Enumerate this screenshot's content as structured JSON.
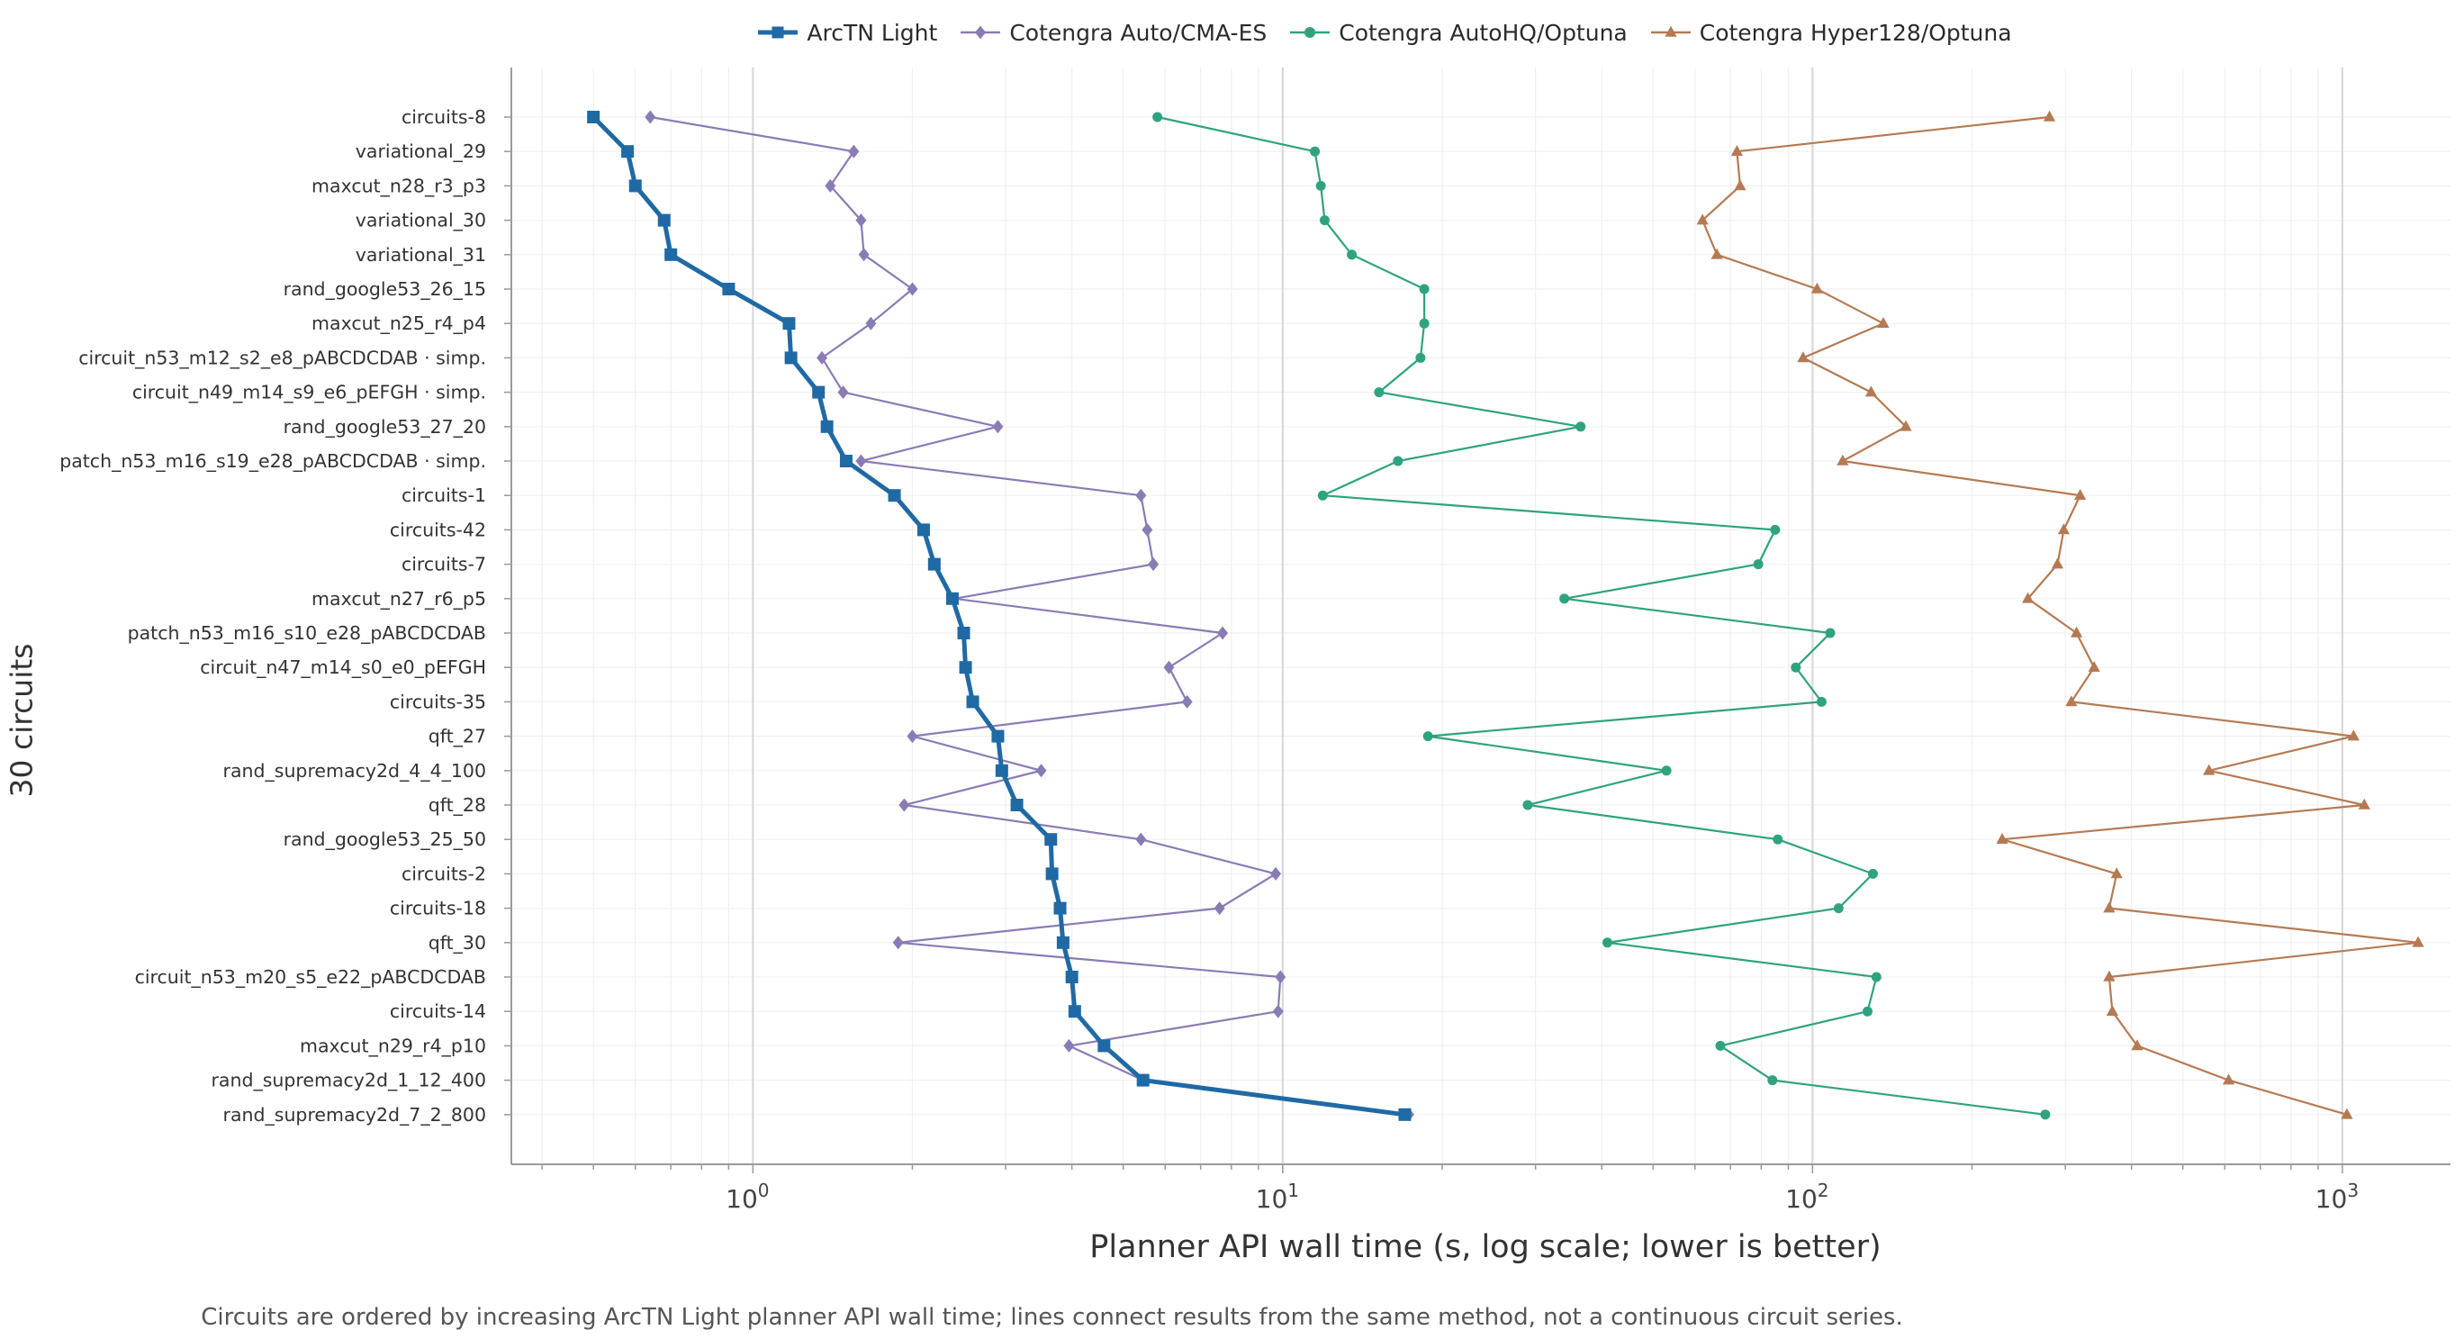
{
  "chart_data": {
    "type": "line",
    "xlabel": "Planner API wall time (s, log scale; lower is better)",
    "ylabel": "30 circuits",
    "xscale": "log",
    "xlim": [
      0.35,
      1600
    ],
    "x_tick_labels": [
      "10^0",
      "10^1",
      "10^2",
      "10^3"
    ],
    "grid": true,
    "legend_position": "top-center",
    "caption": "Circuits are ordered by increasing ArcTN Light planner API wall time; lines connect results from the same method, not a continuous circuit series.",
    "categories": [
      "circuits-8",
      "variational_29",
      "maxcut_n28_r3_p3",
      "variational_30",
      "variational_31",
      "rand_google53_26_15",
      "maxcut_n25_r4_p4",
      "circuit_n53_m12_s2_e8_pABCDCDAB · simp.",
      "circuit_n49_m14_s9_e6_pEFGH · simp.",
      "rand_google53_27_20",
      "patch_n53_m16_s19_e28_pABCDCDAB · simp.",
      "circuits-1",
      "circuits-42",
      "circuits-7",
      "maxcut_n27_r6_p5",
      "patch_n53_m16_s10_e28_pABCDCDAB",
      "circuit_n47_m14_s0_e0_pEFGH",
      "circuits-35",
      "qft_27",
      "rand_supremacy2d_4_4_100",
      "qft_28",
      "rand_google53_25_50",
      "circuits-2",
      "circuits-18",
      "qft_30",
      "circuit_n53_m20_s5_e22_pABCDCDAB",
      "circuits-14",
      "maxcut_n29_r4_p10",
      "rand_supremacy2d_1_12_400",
      "rand_supremacy2d_7_2_800"
    ],
    "series": [
      {
        "name": "ArcTN Light",
        "color": "#1f6aa5",
        "marker": "square",
        "values": [
          0.5,
          0.58,
          0.6,
          0.68,
          0.7,
          0.9,
          1.17,
          1.18,
          1.33,
          1.38,
          1.5,
          1.85,
          2.1,
          2.2,
          2.38,
          2.5,
          2.52,
          2.6,
          2.9,
          2.95,
          3.15,
          3.65,
          3.67,
          3.8,
          3.85,
          4.0,
          4.05,
          4.6,
          5.45,
          17.0
        ]
      },
      {
        "name": "Cotengra Auto/CMA-ES",
        "color": "#8b7bb5",
        "marker": "diamond",
        "values": [
          0.64,
          1.55,
          1.4,
          1.6,
          1.62,
          2.0,
          1.67,
          1.35,
          1.48,
          2.9,
          1.6,
          5.4,
          5.55,
          5.7,
          2.4,
          7.7,
          6.1,
          6.6,
          2.0,
          3.5,
          1.93,
          5.4,
          9.7,
          7.6,
          1.88,
          9.9,
          9.8,
          3.95,
          5.45,
          17.3
        ]
      },
      {
        "name": "Cotengra AutoHQ/Optuna",
        "color": "#2fa37f",
        "marker": "circle",
        "values": [
          5.8,
          11.5,
          11.8,
          12.0,
          13.5,
          18.5,
          18.5,
          18.2,
          15.2,
          36.5,
          16.5,
          11.9,
          85.0,
          79.0,
          34.0,
          108.0,
          93.0,
          104.0,
          18.8,
          53.0,
          29.0,
          86.0,
          130.0,
          112.0,
          41.0,
          132.0,
          127.0,
          67.0,
          84.0,
          275.0
        ]
      },
      {
        "name": "Cotengra Hyper128/Optuna",
        "color": "#b57a53",
        "marker": "triangle",
        "values": [
          280.0,
          72.0,
          73.0,
          62.0,
          66.0,
          102.0,
          136.0,
          96.0,
          129.0,
          150.0,
          114.0,
          320.0,
          298.0,
          290.0,
          255.0,
          315.0,
          340.0,
          308.0,
          1050.0,
          560.0,
          1100.0,
          228.0,
          375.0,
          363.0,
          1390.0,
          363.0,
          368.0,
          410.0,
          610.0,
          1020.0
        ]
      }
    ]
  }
}
